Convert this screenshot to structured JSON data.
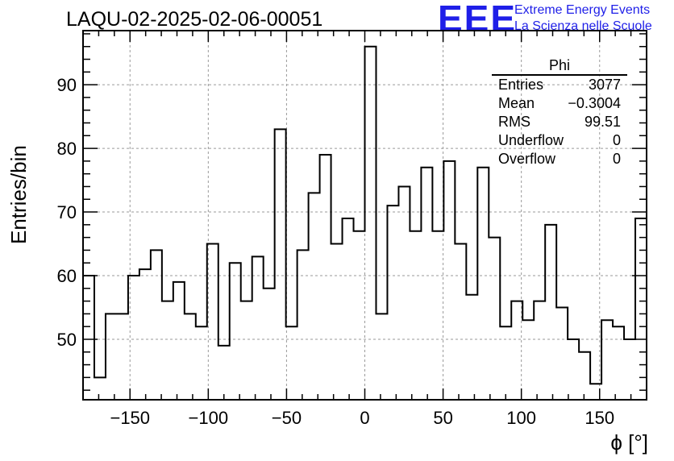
{
  "chart_data": {
    "type": "bar",
    "style": "step-histogram",
    "title": "LAQU-02-2025-02-06-00051",
    "xlabel": "ϕ [°]",
    "ylabel": "Entries/bin",
    "xlim": [
      -180,
      180
    ],
    "ylim": [
      40.5,
      98.5
    ],
    "bin_width": 7.2,
    "x": [
      -176.4,
      -169.2,
      -162,
      -154.8,
      -147.6,
      -140.4,
      -133.2,
      -126,
      -118.8,
      -111.6,
      -104.4,
      -97.2,
      -90,
      -82.8,
      -75.6,
      -68.4,
      -61.2,
      -54,
      -46.8,
      -39.6,
      -32.4,
      -25.2,
      -18,
      -10.8,
      -3.6,
      3.6,
      10.8,
      18,
      25.2,
      32.4,
      39.6,
      46.8,
      54,
      61.2,
      68.4,
      75.6,
      82.8,
      90,
      97.2,
      104.4,
      111.6,
      118.8,
      126,
      133.2,
      140.4,
      147.6,
      154.8,
      162,
      169.2,
      176.4
    ],
    "values": [
      60,
      44,
      54,
      54,
      60,
      61,
      64,
      56,
      59,
      54,
      52,
      65,
      49,
      62,
      56,
      63,
      58,
      83,
      52,
      64,
      73,
      79,
      65,
      69,
      67,
      96,
      54,
      71,
      74,
      67,
      77,
      67,
      78,
      65,
      57,
      77,
      66,
      52,
      56,
      53,
      56,
      68,
      55,
      50,
      48,
      43,
      53,
      52,
      50,
      69
    ],
    "xticks": [
      -150,
      -100,
      -50,
      0,
      50,
      100,
      150
    ],
    "xtick_labels": [
      "−150",
      "−100",
      "−50",
      "0",
      "50",
      "100",
      "150"
    ],
    "yticks": [
      50,
      60,
      70,
      80,
      90
    ],
    "ytick_labels": [
      "50",
      "60",
      "70",
      "80",
      "90"
    ],
    "grid": true,
    "legend": "none",
    "line_color": "#000000"
  },
  "stats_box": {
    "title": "Phi",
    "rows": [
      {
        "label": "Entries",
        "value": "3077"
      },
      {
        "label": "Mean",
        "value": "−0.3004"
      },
      {
        "label": "RMS",
        "value": "99.51"
      },
      {
        "label": "Underflow",
        "value": "0"
      },
      {
        "label": "Overflow",
        "value": "0"
      }
    ]
  },
  "logo": {
    "mark": "EEE",
    "line1": "Extreme Energy Events",
    "line2": "La Scienza nelle Scuole",
    "color": "#1f1fe8"
  }
}
